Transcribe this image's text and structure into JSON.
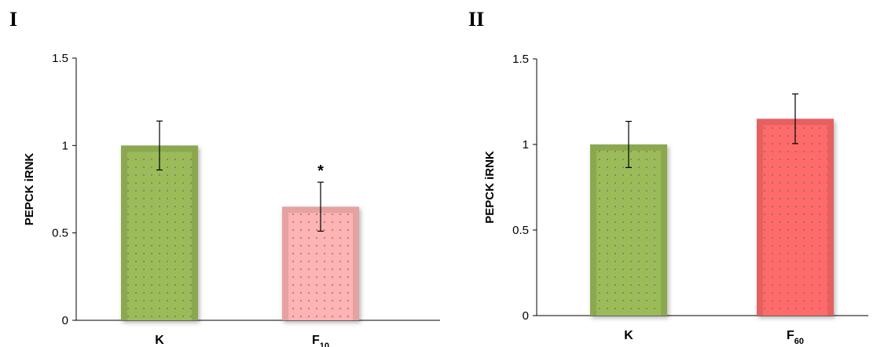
{
  "chart_data": [
    {
      "type": "bar",
      "panel_label": "I",
      "ylabel": "PEPCK iRNK",
      "ylim": [
        0,
        1.5
      ],
      "yticks": [
        "0",
        "0.5",
        "1",
        "1.5"
      ],
      "categories": [
        {
          "main": "K",
          "sub": ""
        },
        {
          "main": "F",
          "sub": "10"
        }
      ],
      "values": [
        1.0,
        0.65
      ],
      "errors": [
        0.14,
        0.14
      ],
      "annotations": [
        "",
        "*"
      ],
      "colors": [
        "#9bbb59",
        "#ffb3b3"
      ],
      "grid": false
    },
    {
      "type": "bar",
      "panel_label": "II",
      "ylabel": "PEPCK iRNK",
      "ylim": [
        0,
        1.5
      ],
      "yticks": [
        "0",
        "0.5",
        "1",
        "1.5"
      ],
      "categories": [
        {
          "main": "K",
          "sub": ""
        },
        {
          "main": "F",
          "sub": "60"
        }
      ],
      "values": [
        1.0,
        1.15
      ],
      "errors": [
        0.135,
        0.145
      ],
      "annotations": [
        "",
        ""
      ],
      "colors": [
        "#9bbb59",
        "#ff6b6b"
      ],
      "grid": false
    }
  ]
}
